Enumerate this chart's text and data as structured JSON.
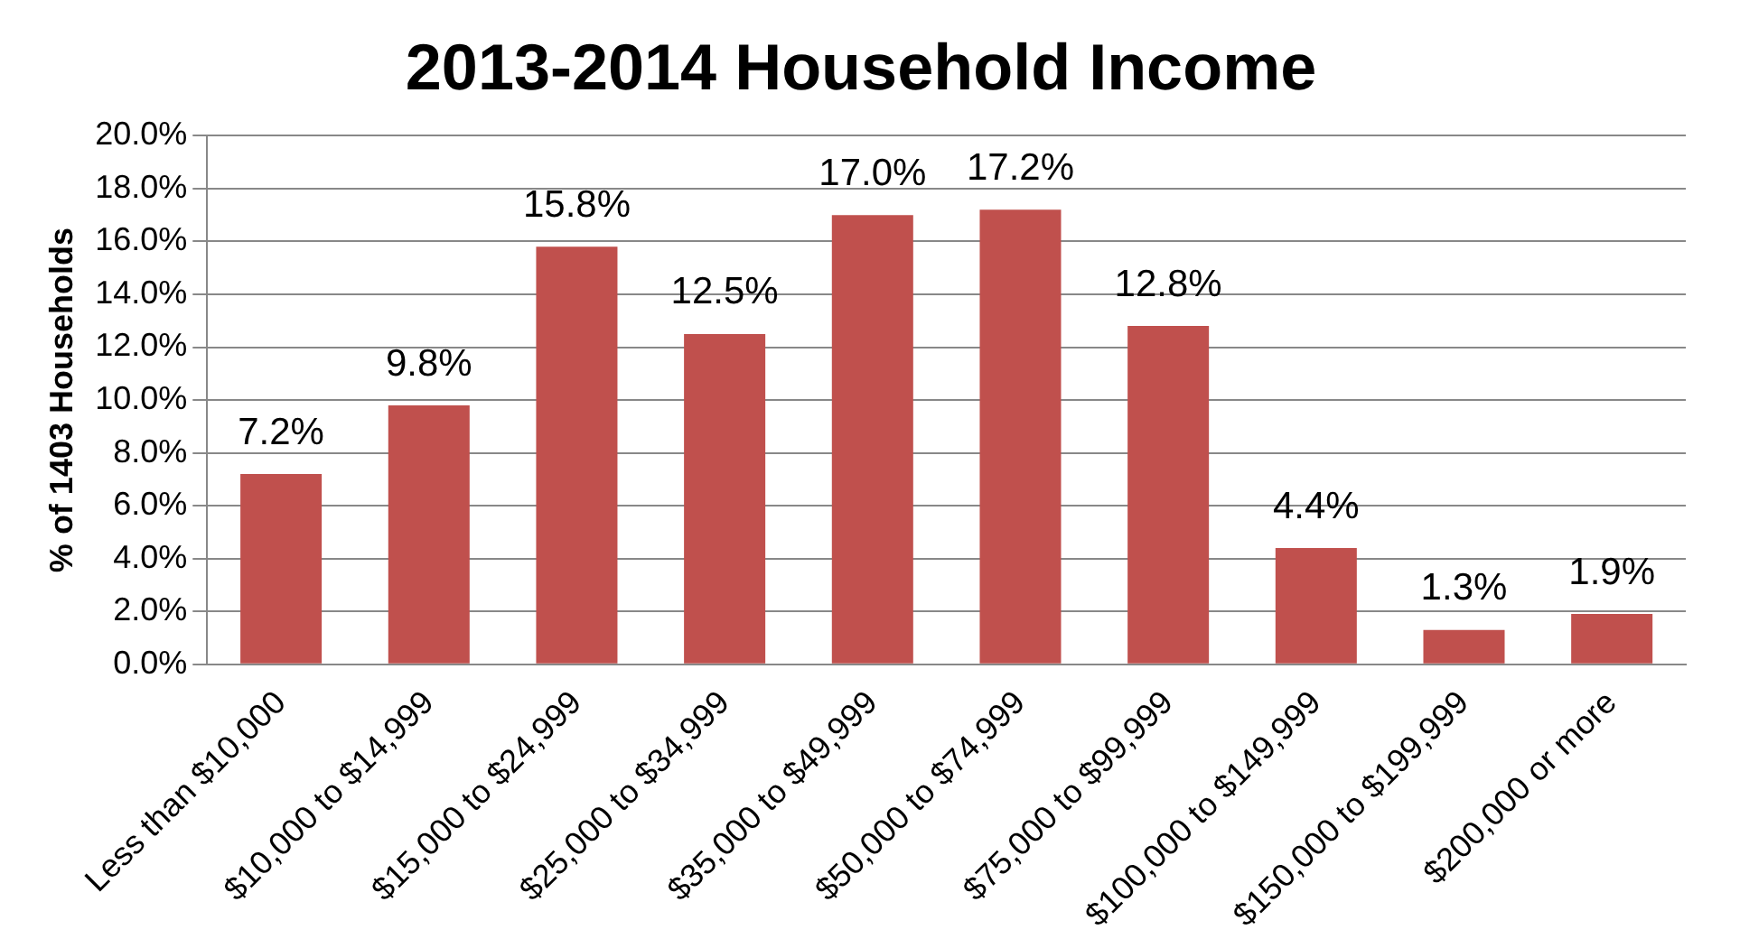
{
  "chart_data": {
    "type": "bar",
    "title": "2013-2014 Household Income",
    "ylabel": "% of 1403 Households",
    "categories": [
      "Less than $10,000",
      "$10,000 to $14,999",
      "$15,000 to $24,999",
      "$25,000 to $34,999",
      "$35,000 to $49,999",
      "$50,000 to $74,999",
      "$75,000 to $99,999",
      "$100,000 to $149,999",
      "$150,000 to $199,999",
      "$200,000 or more"
    ],
    "values": [
      7.2,
      9.8,
      15.8,
      12.5,
      17.0,
      17.2,
      12.8,
      4.4,
      1.3,
      1.9
    ],
    "value_labels": [
      "7.2%",
      "9.8%",
      "15.8%",
      "12.5%",
      "17.0%",
      "17.2%",
      "12.8%",
      "4.4%",
      "1.3%",
      "1.9%"
    ],
    "color": "#c0504d",
    "ylim": [
      0,
      20
    ],
    "yticks": [
      {
        "value": 0,
        "label": "0.0%"
      },
      {
        "value": 2,
        "label": "2.0%"
      },
      {
        "value": 4,
        "label": "4.0%"
      },
      {
        "value": 6,
        "label": "6.0%"
      },
      {
        "value": 8,
        "label": "8.0%"
      },
      {
        "value": 10,
        "label": "10.0%"
      },
      {
        "value": 12,
        "label": "12.0%"
      },
      {
        "value": 14,
        "label": "14.0%"
      },
      {
        "value": 16,
        "label": "16.0%"
      },
      {
        "value": 18,
        "label": "18.0%"
      },
      {
        "value": 20,
        "label": "20.0%"
      }
    ],
    "grid": "y",
    "legend": false
  }
}
